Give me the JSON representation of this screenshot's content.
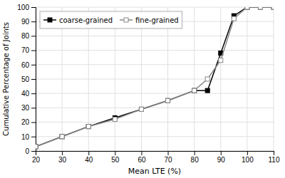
{
  "chart_data": {
    "type": "line",
    "x": [
      20,
      30,
      40,
      50,
      60,
      70,
      80,
      85,
      90,
      95,
      100,
      105,
      110
    ],
    "series": [
      {
        "name": "coarse-grained",
        "color": "#000000",
        "marker": "square",
        "values": [
          3,
          10,
          17,
          23,
          29,
          35,
          42,
          42,
          68,
          94,
          100,
          100,
          100
        ]
      },
      {
        "name": "fine-grained",
        "color": "#888888",
        "marker": "square-open",
        "values": [
          3,
          10,
          17,
          22,
          29,
          35,
          42,
          50,
          63,
          92,
          100,
          100,
          100
        ]
      }
    ],
    "xlabel": "Mean LTE (%)",
    "ylabel": "Cumulative Percentage of Joints",
    "xlim": [
      20,
      110
    ],
    "ylim": [
      0,
      100
    ],
    "xticks": [
      20,
      30,
      40,
      50,
      60,
      70,
      80,
      90,
      100,
      110
    ],
    "yticks": [
      0,
      10,
      20,
      30,
      40,
      50,
      60,
      70,
      80,
      90,
      100
    ],
    "grid": true,
    "legend": "upper left"
  }
}
